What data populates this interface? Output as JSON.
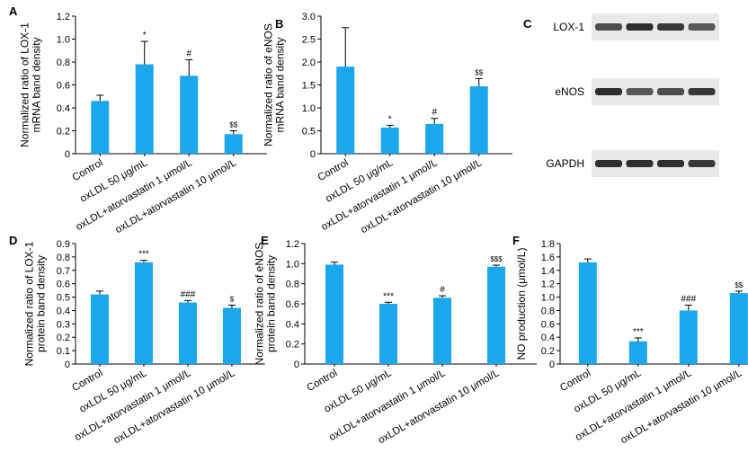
{
  "colors": {
    "bar": "#1aa7ec",
    "axis": "#000000",
    "blot_bg": "#e9e9e9",
    "band": "#1a1a1a"
  },
  "chart_data": [
    {
      "panel": "A",
      "type": "bar",
      "categories": [
        "Control",
        "oxLDL 50 μg/mL",
        "oxLDL+atorvastatin 1 μmol/L",
        "oxLDL+atorvastatin 10 μmol/L"
      ],
      "values": [
        0.46,
        0.78,
        0.68,
        0.17
      ],
      "errors": [
        0.05,
        0.2,
        0.14,
        0.03
      ],
      "annotations": [
        "",
        "*",
        "#",
        "$$"
      ],
      "ylabel": [
        "Normalized ratio of LOX-1",
        "mRNA band density"
      ],
      "ylim": [
        0,
        1.2
      ],
      "yticks": [
        0,
        0.2,
        0.4,
        0.6,
        0.8,
        1.0,
        1.2
      ],
      "ytick_labels": [
        "0",
        "0.2",
        "0.4",
        "0.6",
        "0.8",
        "1.0",
        "1.2"
      ]
    },
    {
      "panel": "B",
      "type": "bar",
      "categories": [
        "Control",
        "oxLDL 50 μg/mL",
        "oxLDL+atorvastatin 1 μmol/L",
        "oxLDL+atorvastatin 10 μmol/L"
      ],
      "values": [
        1.9,
        0.57,
        0.65,
        1.47
      ],
      "errors": [
        0.85,
        0.05,
        0.12,
        0.17
      ],
      "annotations": [
        "",
        "*",
        "#",
        "$$"
      ],
      "ylabel": [
        "Normalized ratio of eNOS",
        "mRNA band density"
      ],
      "ylim": [
        0,
        3.0
      ],
      "yticks": [
        0,
        0.5,
        1.0,
        1.5,
        2.0,
        2.5,
        3.0
      ],
      "ytick_labels": [
        "0",
        "0.5",
        "1.0",
        "1.5",
        "2.0",
        "2.5",
        "3.0"
      ]
    },
    {
      "panel": "D",
      "type": "bar",
      "categories": [
        "Control",
        "oxLDL 50 μg/mL",
        "oxLDL+atorvastatin 1 μmol/L",
        "oxLDL+atorvastatin 10 μmol/L"
      ],
      "values": [
        0.52,
        0.76,
        0.46,
        0.42
      ],
      "errors": [
        0.025,
        0.015,
        0.015,
        0.02
      ],
      "annotations": [
        "",
        "***",
        "###",
        "$"
      ],
      "ylabel": [
        "Normalized ratio of LOX-1",
        "protein band density"
      ],
      "ylim": [
        0,
        0.9
      ],
      "yticks": [
        0,
        0.1,
        0.2,
        0.3,
        0.4,
        0.5,
        0.6,
        0.7,
        0.8,
        0.9
      ],
      "ytick_labels": [
        "0",
        "0.1",
        "0.2",
        "0.3",
        "0.4",
        "0.5",
        "0.6",
        "0.7",
        "0.8",
        "0.9"
      ]
    },
    {
      "panel": "E",
      "type": "bar",
      "categories": [
        "Control",
        "oxLDL 50 μg/mL",
        "oxLDL+atorvastatin 1 μmol/L",
        "oxLDL+atorvastatin 10 μmol/L"
      ],
      "values": [
        0.99,
        0.6,
        0.66,
        0.97
      ],
      "errors": [
        0.025,
        0.015,
        0.02,
        0.015
      ],
      "annotations": [
        "",
        "***",
        "#",
        "$$$"
      ],
      "ylabel": [
        "Normalized ratio of eNOS",
        "protein band density"
      ],
      "ylim": [
        0,
        1.2
      ],
      "yticks": [
        0,
        0.2,
        0.4,
        0.6,
        0.8,
        1.0,
        1.2
      ],
      "ytick_labels": [
        "0",
        "0.2",
        "0.4",
        "0.6",
        "0.8",
        "1.0",
        "1.2"
      ]
    },
    {
      "panel": "F",
      "type": "bar",
      "categories": [
        "Control",
        "oxLDL 50 μg/mL",
        "oxLDL+atorvastatin 1 μmol/L",
        "oxLDL+atorvastatin 10 μmol/L"
      ],
      "values": [
        1.52,
        0.34,
        0.8,
        1.06
      ],
      "errors": [
        0.05,
        0.05,
        0.08,
        0.03
      ],
      "annotations": [
        "",
        "***",
        "###",
        "$$"
      ],
      "ylabel": [
        "NO production (μmol/L)"
      ],
      "ylim": [
        0,
        1.8
      ],
      "yticks": [
        0,
        0.2,
        0.4,
        0.6,
        0.8,
        1.0,
        1.2,
        1.4,
        1.6,
        1.8
      ],
      "ytick_labels": [
        "0",
        "0.2",
        "0.4",
        "0.6",
        "0.8",
        "1.0",
        "1.2",
        "1.4",
        "1.6",
        "1.8"
      ]
    }
  ],
  "blot": {
    "panel": "C",
    "rows": [
      {
        "label": "LOX-1",
        "band_strengths": [
          0.75,
          0.9,
          0.85,
          0.7
        ]
      },
      {
        "label": "eNOS",
        "band_strengths": [
          0.9,
          0.7,
          0.75,
          0.85
        ]
      },
      {
        "label": "GAPDH",
        "band_strengths": [
          0.9,
          0.9,
          0.9,
          0.85
        ]
      }
    ]
  }
}
